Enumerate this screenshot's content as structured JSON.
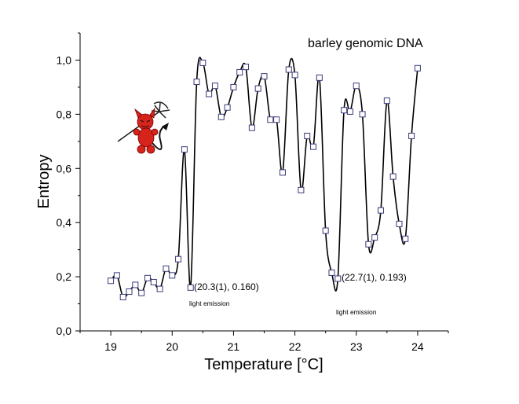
{
  "chart_data": {
    "type": "line",
    "title": "barley genomic DNA",
    "xlabel": "Temperature [°C]",
    "ylabel": "Entropy",
    "xlim": [
      18.5,
      24.5
    ],
    "ylim": [
      0.0,
      1.1
    ],
    "x_ticks": [
      "19",
      "20",
      "21",
      "22",
      "23",
      "24"
    ],
    "y_ticks": [
      "0,0",
      "0,2",
      "0,4",
      "0,6",
      "0,8",
      "1,0"
    ],
    "grid": false,
    "marker": "open-square",
    "line_color": "#000000",
    "marker_color": "#3a3a7a",
    "series": [
      {
        "x": [
          19.0,
          19.1,
          19.2,
          19.3,
          19.4,
          19.5,
          19.6,
          19.7,
          19.8,
          19.9,
          20.0,
          20.1,
          20.2,
          20.3,
          20.4,
          20.5,
          20.6,
          20.7,
          20.8,
          20.9,
          21.0,
          21.1,
          21.2,
          21.3,
          21.4,
          21.5,
          21.6,
          21.7,
          21.8,
          21.9,
          22.0,
          22.1,
          22.2,
          22.3,
          22.4,
          22.5,
          22.6,
          22.7,
          22.8,
          22.9,
          23.0,
          23.1,
          23.2,
          23.3,
          23.4,
          23.5,
          23.6,
          23.7,
          23.8,
          23.9,
          24.0
        ],
        "y": [
          0.185,
          0.205,
          0.125,
          0.145,
          0.17,
          0.14,
          0.195,
          0.18,
          0.155,
          0.23,
          0.205,
          0.265,
          0.67,
          0.16,
          0.92,
          0.99,
          0.875,
          0.905,
          0.79,
          0.825,
          0.9,
          0.955,
          0.975,
          0.75,
          0.895,
          0.94,
          0.78,
          0.78,
          0.585,
          0.965,
          0.945,
          0.52,
          0.72,
          0.68,
          0.935,
          0.37,
          0.215,
          0.193,
          0.815,
          0.81,
          0.905,
          0.8,
          0.32,
          0.345,
          0.445,
          0.85,
          0.57,
          0.395,
          0.34,
          0.72,
          0.97
        ]
      }
    ],
    "annotations": [
      {
        "text": "(20.3(1), 0.160)",
        "x": 20.3,
        "y": 0.16
      },
      {
        "text": "light emission",
        "x": 20.3,
        "y": 0.16
      },
      {
        "text": "(22.7(1), 0.193)",
        "x": 22.7,
        "y": 0.193
      },
      {
        "text": "light emission",
        "x": 22.7,
        "y": 0.193
      }
    ],
    "icons": [
      "devil-with-pitchfork-icon"
    ]
  }
}
